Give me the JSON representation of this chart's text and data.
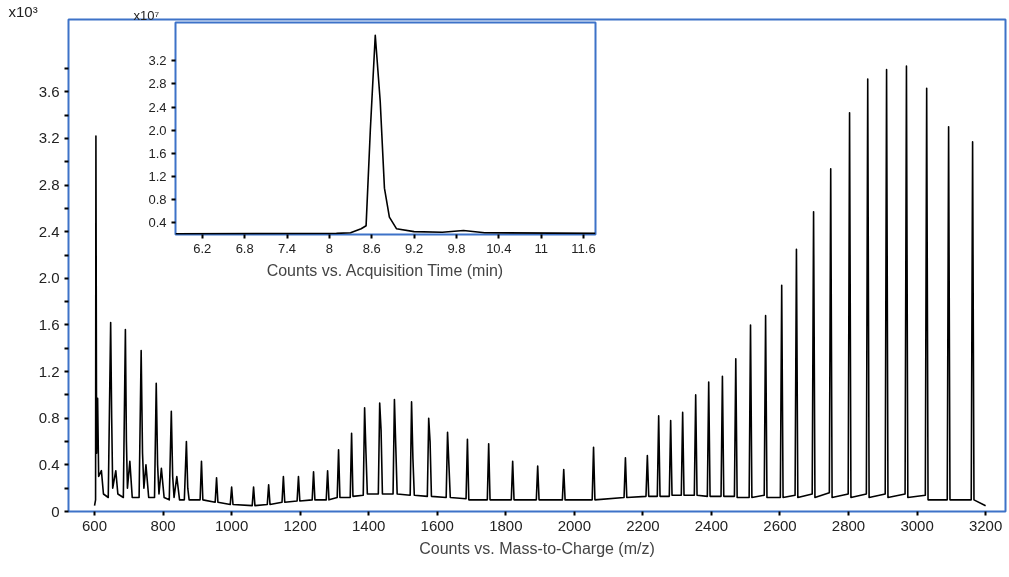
{
  "chart_data": [
    {
      "type": "line",
      "xlabel": "Counts vs. Mass-to-Charge (m/z)",
      "ylabel": "x10³",
      "grid": false,
      "marker": "none",
      "line_style": "solid",
      "xlim": [
        524,
        3258
      ],
      "ylim": [
        0,
        4.22
      ],
      "xticks": [
        600,
        800,
        1000,
        1200,
        1400,
        1600,
        1800,
        2000,
        2200,
        2400,
        2600,
        2800,
        3000,
        3200
      ],
      "yticks": [
        0,
        {
          "value": 0.2,
          "label": null
        },
        0.4,
        {
          "value": 0.6,
          "label": null
        },
        0.8,
        {
          "value": 1.0,
          "label": null
        },
        1.2,
        {
          "value": 1.4,
          "label": null
        },
        1.6,
        {
          "value": 1.8,
          "label": null
        },
        {
          "value": 2.0,
          "label": "2.0"
        },
        {
          "value": 2.2,
          "label": null
        },
        2.4,
        {
          "value": 2.6,
          "label": null
        },
        2.8,
        {
          "value": 3.0,
          "label": null
        },
        3.2,
        {
          "value": 3.4,
          "label": null
        },
        3.6,
        {
          "value": 3.8,
          "label": null
        }
      ],
      "x": [
        600,
        603,
        604,
        606,
        609,
        612,
        620,
        626,
        640,
        647,
        650,
        653,
        662,
        668,
        684,
        690,
        693,
        696,
        703,
        710,
        730,
        736,
        740,
        744,
        750,
        758,
        775,
        780,
        784,
        788,
        795,
        803,
        818,
        824,
        828,
        832,
        840,
        848,
        862,
        868,
        872,
        876,
        908,
        912,
        916,
        952,
        956,
        960,
        996,
        1000,
        1004,
        1060,
        1064,
        1068,
        1104,
        1108,
        1112,
        1147,
        1151,
        1155,
        1191,
        1195,
        1199,
        1235,
        1239,
        1243,
        1276,
        1280,
        1284,
        1308,
        1312,
        1316,
        1346,
        1350,
        1354,
        1384,
        1388,
        1392,
        1396,
        1428,
        1432,
        1436,
        1440,
        1471,
        1475,
        1479,
        1483,
        1521,
        1525,
        1529,
        1533,
        1571,
        1575,
        1579,
        1583,
        1626,
        1630,
        1634,
        1638,
        1684,
        1688,
        1692,
        1746,
        1750,
        1754,
        1816,
        1820,
        1824,
        1889,
        1893,
        1897,
        1965,
        1969,
        1973,
        2052,
        2056,
        2060,
        2145,
        2149,
        2153,
        2209,
        2213,
        2217,
        2242,
        2246,
        2250,
        2277,
        2281,
        2285,
        2312,
        2316,
        2320,
        2350,
        2354,
        2358,
        2388,
        2392,
        2396,
        2428,
        2432,
        2436,
        2467,
        2471,
        2475,
        2510,
        2514,
        2518,
        2554,
        2558,
        2562,
        2601,
        2605,
        2609,
        2644,
        2648,
        2652,
        2694,
        2698,
        2702,
        2744,
        2748,
        2752,
        2799,
        2803,
        2807,
        2852,
        2856,
        2860,
        2907,
        2911,
        2915,
        2965,
        2969,
        2973,
        3024,
        3028,
        3032,
        3088,
        3092,
        3096,
        3158,
        3162,
        3166,
        3200
      ],
      "series": [
        {
          "color": "#000000",
          "values": [
            0.05,
            0.1,
            3.22,
            0.5,
            0.97,
            0.3,
            0.35,
            0.15,
            0.12,
            1.62,
            0.8,
            0.2,
            0.35,
            0.15,
            0.12,
            1.56,
            0.6,
            0.2,
            0.43,
            0.12,
            0.12,
            1.38,
            0.5,
            0.2,
            0.4,
            0.12,
            0.12,
            1.1,
            0.4,
            0.15,
            0.37,
            0.12,
            0.1,
            0.86,
            0.3,
            0.12,
            0.3,
            0.1,
            0.1,
            0.6,
            0.2,
            0.1,
            0.1,
            0.43,
            0.1,
            0.08,
            0.29,
            0.08,
            0.06,
            0.21,
            0.06,
            0.05,
            0.21,
            0.05,
            0.06,
            0.23,
            0.06,
            0.08,
            0.3,
            0.08,
            0.09,
            0.3,
            0.09,
            0.1,
            0.34,
            0.1,
            0.1,
            0.35,
            0.1,
            0.12,
            0.53,
            0.12,
            0.12,
            0.67,
            0.13,
            0.14,
            0.89,
            0.5,
            0.15,
            0.15,
            0.93,
            0.7,
            0.15,
            0.15,
            0.96,
            0.55,
            0.15,
            0.14,
            0.94,
            0.45,
            0.14,
            0.13,
            0.8,
            0.6,
            0.13,
            0.12,
            0.68,
            0.4,
            0.12,
            0.11,
            0.62,
            0.1,
            0.1,
            0.58,
            0.1,
            0.1,
            0.43,
            0.1,
            0.1,
            0.39,
            0.1,
            0.1,
            0.36,
            0.1,
            0.1,
            0.55,
            0.1,
            0.12,
            0.46,
            0.12,
            0.13,
            0.48,
            0.13,
            0.13,
            0.82,
            0.13,
            0.13,
            0.78,
            0.14,
            0.14,
            0.85,
            0.14,
            0.14,
            1.0,
            0.14,
            0.13,
            1.11,
            0.13,
            0.13,
            1.16,
            0.13,
            0.13,
            1.31,
            0.12,
            0.12,
            1.6,
            0.12,
            0.14,
            1.68,
            0.12,
            0.12,
            1.94,
            0.12,
            0.14,
            2.25,
            0.12,
            0.15,
            2.57,
            0.12,
            0.16,
            2.94,
            0.12,
            0.15,
            3.42,
            0.12,
            0.15,
            3.71,
            0.12,
            0.15,
            3.79,
            0.12,
            0.15,
            3.82,
            0.12,
            0.14,
            3.63,
            0.1,
            0.1,
            3.3,
            0.1,
            0.1,
            3.17,
            0.1,
            0.05
          ]
        }
      ]
    },
    {
      "type": "line",
      "xlabel": "Counts vs. Acquisition Time (min)",
      "ylabel": "x10⁷",
      "grid": false,
      "marker": "none",
      "line_style": "solid",
      "xlim": [
        5.82,
        11.77
      ],
      "ylim": [
        0.2,
        3.86
      ],
      "xticks": [
        6.2,
        6.8,
        7.4,
        8,
        8.6,
        9.2,
        9.8,
        10.4,
        11,
        11.6
      ],
      "yticks": [
        0.4,
        0.8,
        1.2,
        1.6,
        {
          "value": 2.0,
          "label": "2.0"
        },
        2.4,
        2.8,
        3.2
      ],
      "x": [
        5.82,
        8.1,
        8.3,
        8.45,
        8.52,
        8.58,
        8.65,
        8.72,
        8.78,
        8.85,
        8.95,
        9.2,
        9.6,
        9.9,
        10.2,
        11.77
      ],
      "series": [
        {
          "color": "#000000",
          "values": [
            0.21,
            0.22,
            0.23,
            0.3,
            0.35,
            2.0,
            3.64,
            2.5,
            1.0,
            0.5,
            0.3,
            0.25,
            0.24,
            0.27,
            0.23,
            0.22
          ]
        }
      ]
    }
  ]
}
